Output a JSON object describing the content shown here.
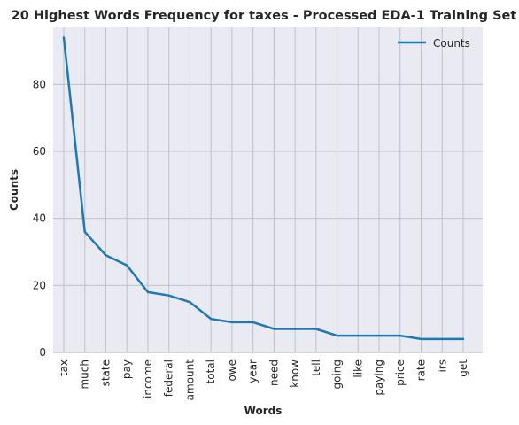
{
  "chart_data": {
    "type": "line",
    "title": "20 Highest Words Frequency for taxes - Processed EDA-1 Training Set",
    "xlabel": "Words",
    "ylabel": "Counts",
    "categories": [
      "tax",
      "much",
      "state",
      "pay",
      "income",
      "federal",
      "amount",
      "total",
      "owe",
      "year",
      "need",
      "know",
      "tell",
      "going",
      "like",
      "paying",
      "price",
      "rate",
      "irs",
      "get"
    ],
    "series": [
      {
        "name": "Counts",
        "values": [
          94,
          36,
          29,
          26,
          18,
          17,
          15,
          10,
          9,
          9,
          7,
          7,
          7,
          5,
          5,
          5,
          5,
          4,
          4,
          4
        ],
        "color": "#1f77b4"
      }
    ],
    "ylim": [
      0,
      97
    ],
    "yticks": [
      0,
      20,
      40,
      60,
      80
    ],
    "grid": true,
    "legend": "top-right",
    "colors": {
      "plot_background": "#eaeaf2",
      "grid": "#c0c0c8",
      "line": "#1f77b4"
    }
  }
}
